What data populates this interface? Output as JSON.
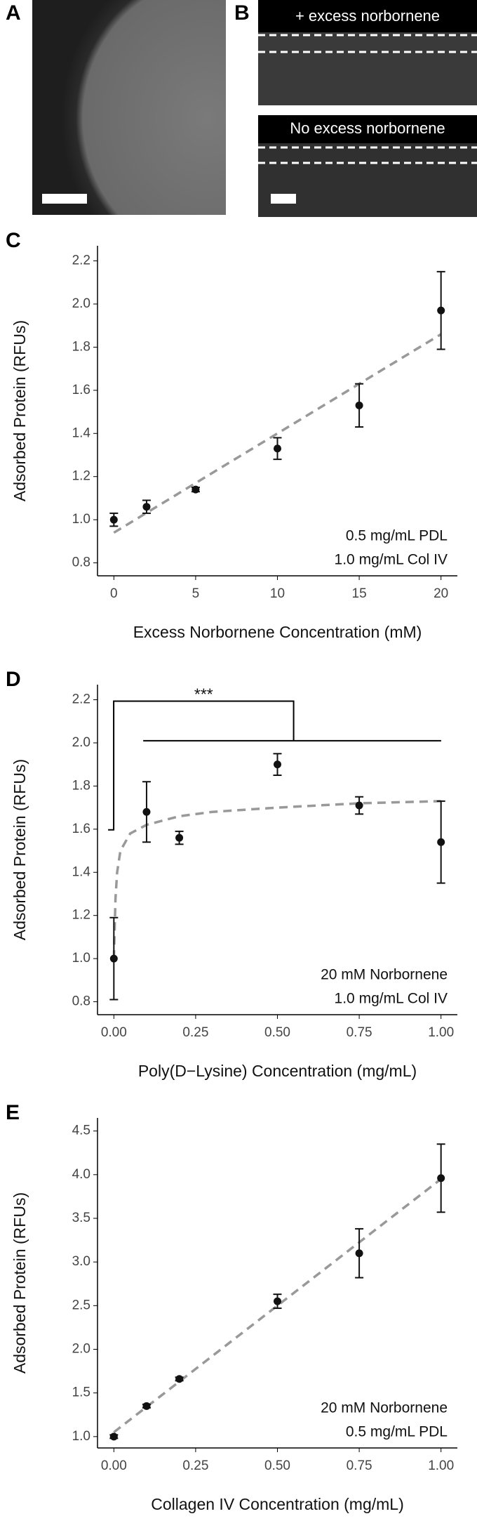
{
  "image_panels": {
    "labels": [
      "A",
      "B"
    ],
    "b_captions": [
      "+ excess norbornene",
      "No excess norbornene"
    ]
  },
  "chart_data": [
    {
      "type": "scatter",
      "panel_label": "C",
      "x_label": "Excess Norbornene Concentration (mM)",
      "y_label": "Adsorbed Protein (RFUs)",
      "notes": [
        "0.5 mg/mL PDL",
        "1.0 mg/mL Col IV"
      ],
      "x": [
        0,
        2,
        5,
        10,
        15,
        20
      ],
      "series": [
        {
          "color": "#111111",
          "values": [
            1.0,
            1.06,
            1.14,
            1.33,
            1.53,
            1.97
          ],
          "errors": [
            0.03,
            0.03,
            0.01,
            0.05,
            0.1,
            0.18
          ]
        }
      ],
      "fit": {
        "color": "#999999",
        "x": [
          0,
          20
        ],
        "values": [
          0.94,
          1.86
        ]
      },
      "xlim": [
        -1.0,
        21.0
      ],
      "ylim": [
        0.74,
        2.27
      ],
      "xticks": [
        0,
        5,
        10,
        15,
        20
      ],
      "yticks": [
        0.8,
        {
          "value": 1.0,
          "label": "1.0"
        },
        1.2,
        1.4,
        1.6,
        1.8,
        {
          "value": 2.0,
          "label": "2.0"
        },
        2.2
      ]
    },
    {
      "type": "scatter",
      "panel_label": "D",
      "x_label": "Poly(D−Lysine) Concentration (mg/mL)",
      "y_label": "Adsorbed Protein (RFUs)",
      "notes": [
        "20 mM Norbornene",
        "1.0 mg/mL Col IV"
      ],
      "significance": "***",
      "x": [
        0,
        0.1,
        0.2,
        0.5,
        0.75,
        1.0
      ],
      "series": [
        {
          "color": "#111111",
          "values": [
            1.0,
            1.68,
            1.56,
            1.9,
            1.71,
            1.54
          ],
          "errors": [
            0.19,
            0.14,
            0.03,
            0.05,
            0.04,
            0.19
          ]
        }
      ],
      "fit": {
        "color": "#999999",
        "x": [
          0,
          0.005,
          0.01,
          0.02,
          0.05,
          0.1,
          0.2,
          0.3,
          0.5,
          0.75,
          1.0
        ],
        "values": [
          1.0,
          1.28,
          1.4,
          1.5,
          1.58,
          1.62,
          1.66,
          1.68,
          1.7,
          1.72,
          1.73
        ]
      },
      "xlim": [
        -0.05,
        1.05
      ],
      "ylim": [
        0.74,
        2.27
      ],
      "xticks": [
        {
          "value": 0,
          "label": "0.00"
        },
        {
          "value": 0.25,
          "label": "0.25"
        },
        {
          "value": 0.5,
          "label": "0.50"
        },
        {
          "value": 0.75,
          "label": "0.75"
        },
        {
          "value": 1.0,
          "label": "1.00"
        }
      ],
      "yticks": [
        0.8,
        {
          "value": 1.0,
          "label": "1.0"
        },
        1.2,
        1.4,
        1.6,
        1.8,
        {
          "value": 2.0,
          "label": "2.0"
        },
        2.2
      ]
    },
    {
      "type": "scatter",
      "panel_label": "E",
      "x_label": "Collagen IV Concentration (mg/mL)",
      "y_label": "Adsorbed Protein (RFUs)",
      "notes": [
        "20 mM Norbornene",
        "0.5 mg/mL PDL"
      ],
      "x": [
        0,
        0.1,
        0.2,
        0.5,
        0.75,
        1.0
      ],
      "series": [
        {
          "color": "#111111",
          "values": [
            1.0,
            1.35,
            1.66,
            2.55,
            3.1,
            3.96
          ],
          "errors": [
            0.02,
            0.02,
            0.02,
            0.08,
            0.28,
            0.39
          ]
        }
      ],
      "fit": {
        "color": "#999999",
        "x": [
          0,
          1.0
        ],
        "values": [
          1.05,
          3.95
        ]
      },
      "xlim": [
        -0.05,
        1.05
      ],
      "ylim": [
        0.87,
        4.65
      ],
      "xticks": [
        {
          "value": 0,
          "label": "0.00"
        },
        {
          "value": 0.25,
          "label": "0.25"
        },
        {
          "value": 0.5,
          "label": "0.50"
        },
        {
          "value": 0.75,
          "label": "0.75"
        },
        {
          "value": 1.0,
          "label": "1.00"
        }
      ],
      "yticks": [
        {
          "value": 1.0,
          "label": "1.0"
        },
        1.5,
        {
          "value": 2.0,
          "label": "2.0"
        },
        2.5,
        {
          "value": 3.0,
          "label": "3.0"
        },
        3.5,
        {
          "value": 4.0,
          "label": "4.0"
        },
        4.5
      ]
    }
  ]
}
